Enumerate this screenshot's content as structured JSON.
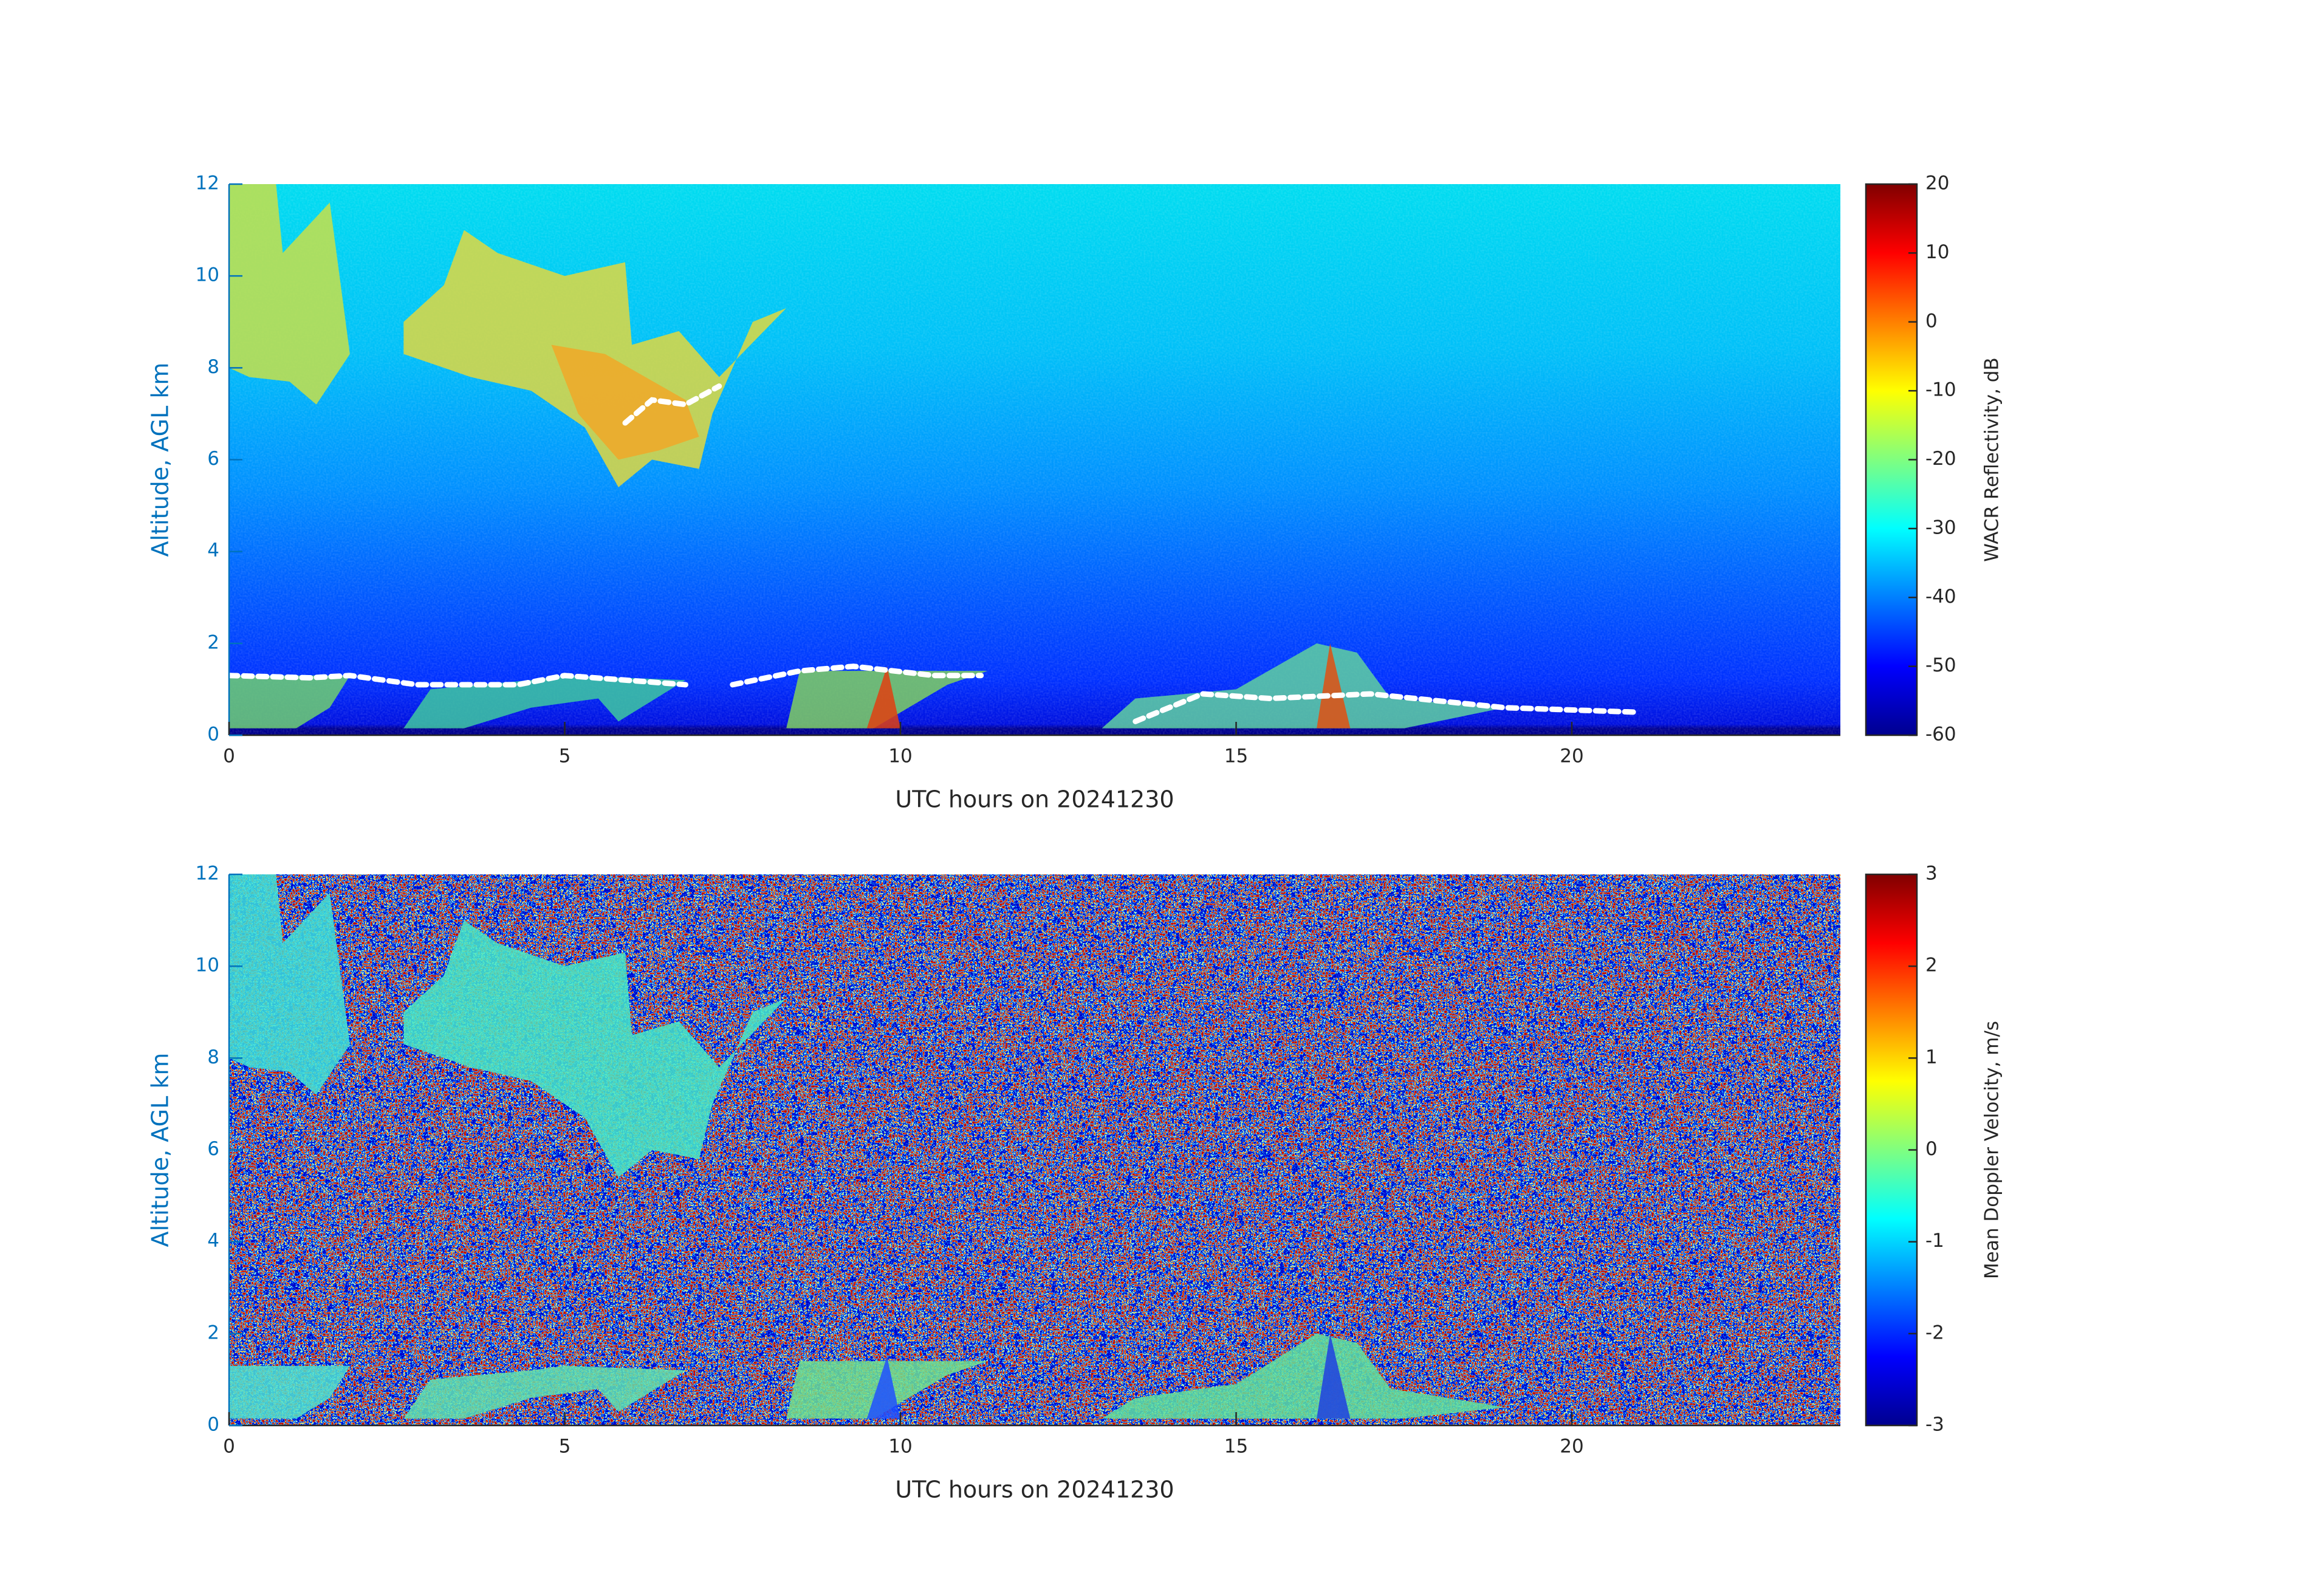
{
  "chart_data": [
    {
      "type": "heatmap",
      "x_label": "UTC hours on 20241230",
      "y_label": "Altitude, AGL km",
      "xlim": [
        0,
        24
      ],
      "xticks": [
        0,
        5,
        10,
        15,
        20
      ],
      "ylim": [
        0,
        12
      ],
      "yticks": [
        0,
        2,
        4,
        6,
        8,
        10,
        12
      ],
      "colorbar": {
        "label": "WACR Reflectivity, dB",
        "lim": [
          -60,
          20
        ],
        "ticks": [
          -60,
          -50,
          -40,
          -30,
          -20,
          -10,
          0,
          10,
          20
        ],
        "colormap": "jet"
      }
    },
    {
      "type": "heatmap",
      "x_label": "UTC hours on 20241230",
      "y_label": "Altitude, AGL km",
      "xlim": [
        0,
        24
      ],
      "xticks": [
        0,
        5,
        10,
        15,
        20
      ],
      "ylim": [
        0,
        12
      ],
      "yticks": [
        0,
        2,
        4,
        6,
        8,
        10,
        12
      ],
      "colorbar": {
        "label": "Mean Doppler Velocity, m/s",
        "lim": [
          -3,
          3
        ],
        "ticks": [
          -3,
          -2,
          -1,
          0,
          1,
          2,
          3
        ],
        "colormap": "jet"
      }
    }
  ]
}
